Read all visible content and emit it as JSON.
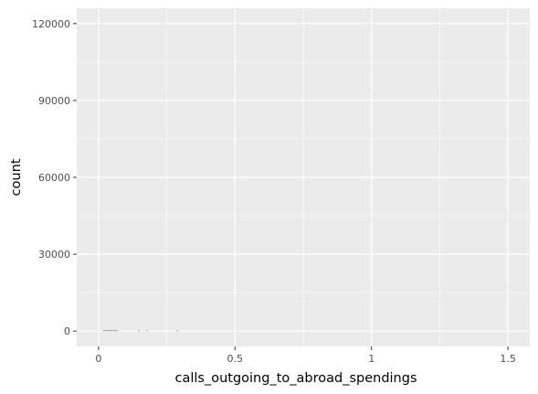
{
  "chart_data": {
    "type": "histogram",
    "xlabel": "calls_outgoing_to_abroad_spendings",
    "ylabel": "count",
    "xlim": [
      -0.08,
      1.58
    ],
    "ylim": [
      -6000,
      126000
    ],
    "x_ticks": [
      {
        "value": 0,
        "label": "0"
      },
      {
        "value": 0.5,
        "label": "0.5"
      },
      {
        "value": 1,
        "label": "1"
      },
      {
        "value": 1.5,
        "label": "1.5"
      }
    ],
    "y_ticks": [
      {
        "value": 0,
        "label": "0"
      },
      {
        "value": 30000,
        "label": "30000"
      },
      {
        "value": 60000,
        "label": "60000"
      },
      {
        "value": 90000,
        "label": "90000"
      },
      {
        "value": 120000,
        "label": "120000"
      }
    ],
    "bins": [
      {
        "x": 0.02,
        "count": 150
      },
      {
        "x": 0.026,
        "count": 120
      },
      {
        "x": 0.032,
        "count": 140
      },
      {
        "x": 0.038,
        "count": 110
      },
      {
        "x": 0.044,
        "count": 130
      },
      {
        "x": 0.05,
        "count": 100
      },
      {
        "x": 0.056,
        "count": 120
      },
      {
        "x": 0.062,
        "count": 90
      },
      {
        "x": 0.068,
        "count": 80
      },
      {
        "x": 0.148,
        "count": 260
      },
      {
        "x": 0.177,
        "count": 130
      },
      {
        "x": 0.289,
        "count": 110
      }
    ],
    "grid": true,
    "background": "#ebebeb",
    "gridline_color": "#ffffff",
    "bar_color": "#595959"
  }
}
